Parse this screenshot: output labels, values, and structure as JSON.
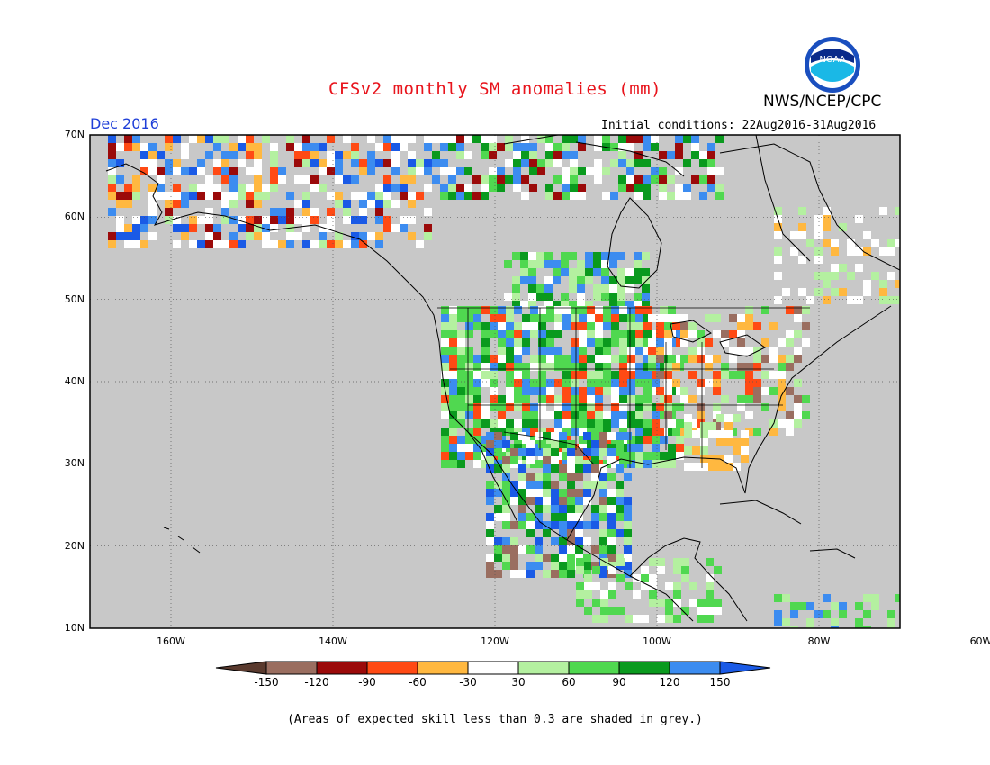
{
  "title": "CFSv2 monthly SM anomalies (mm)",
  "organization": "NWS/NCEP/CPC",
  "logo_text": "NOAA",
  "valid_month": "Dec 2016",
  "initial_conditions": "Initial conditions: 22Aug2016-31Aug2016",
  "lat_labels": [
    "70N",
    "60N",
    "50N",
    "40N",
    "30N",
    "20N",
    "10N"
  ],
  "lon_labels": [
    "160W",
    "140W",
    "120W",
    "100W",
    "80W",
    "60W"
  ],
  "colorbar": {
    "labels": [
      "-150",
      "-120",
      "-90",
      "-60",
      "-30",
      "30",
      "60",
      "90",
      "120",
      "150"
    ],
    "colors": [
      "#5a3a2e",
      "#9a6e60",
      "#9b0a0a",
      "#ff4a14",
      "#ffb840",
      "#ffffff",
      "#b4f0a0",
      "#50d850",
      "#0a9a1e",
      "#3c8cf0",
      "#1a5ae6"
    ]
  },
  "colors": {
    "ocean": "#c8c8c8",
    "no_skill": "#c8c8c8",
    "title": "#e8141c",
    "valid": "#1f3fd8"
  },
  "footnote": "(Areas of expected skill less than 0.3 are shaded in grey.)"
}
